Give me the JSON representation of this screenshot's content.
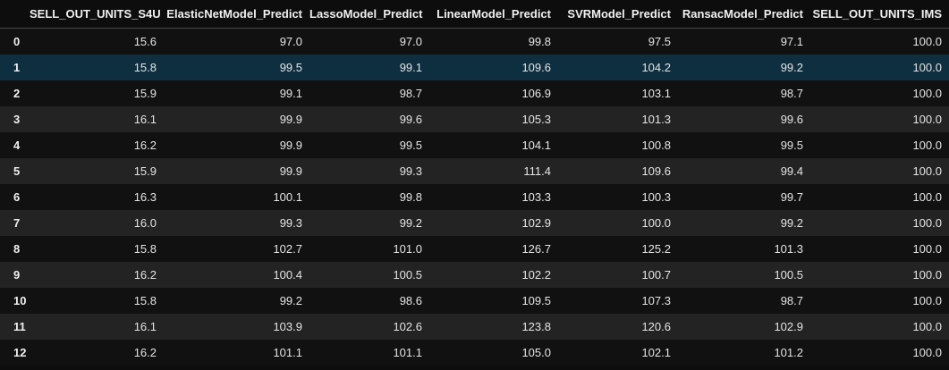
{
  "table": {
    "columns": [
      "SELL_OUT_UNITS_S4U",
      "ElasticNetModel_Predict",
      "LassoModel_Predict",
      "LinearModel_Predict",
      "SVRModel_Predict",
      "RansacModel_Predict",
      "SELL_OUT_UNITS_IMS"
    ],
    "selected_row": 1,
    "rows": [
      {
        "index": "0",
        "cells": [
          "15.6",
          "97.0",
          "97.0",
          "99.8",
          "97.5",
          "97.1",
          "100.0"
        ]
      },
      {
        "index": "1",
        "cells": [
          "15.8",
          "99.5",
          "99.1",
          "109.6",
          "104.2",
          "99.2",
          "100.0"
        ]
      },
      {
        "index": "2",
        "cells": [
          "15.9",
          "99.1",
          "98.7",
          "106.9",
          "103.1",
          "98.7",
          "100.0"
        ]
      },
      {
        "index": "3",
        "cells": [
          "16.1",
          "99.9",
          "99.6",
          "105.3",
          "101.3",
          "99.6",
          "100.0"
        ]
      },
      {
        "index": "4",
        "cells": [
          "16.2",
          "99.9",
          "99.5",
          "104.1",
          "100.8",
          "99.5",
          "100.0"
        ]
      },
      {
        "index": "5",
        "cells": [
          "15.9",
          "99.9",
          "99.3",
          "111.4",
          "109.6",
          "99.4",
          "100.0"
        ]
      },
      {
        "index": "6",
        "cells": [
          "16.3",
          "100.1",
          "99.8",
          "103.3",
          "100.3",
          "99.7",
          "100.0"
        ]
      },
      {
        "index": "7",
        "cells": [
          "16.0",
          "99.3",
          "99.2",
          "102.9",
          "100.0",
          "99.2",
          "100.0"
        ]
      },
      {
        "index": "8",
        "cells": [
          "15.8",
          "102.7",
          "101.0",
          "126.7",
          "125.2",
          "101.3",
          "100.0"
        ]
      },
      {
        "index": "9",
        "cells": [
          "16.2",
          "100.4",
          "100.5",
          "102.2",
          "100.7",
          "100.5",
          "100.0"
        ]
      },
      {
        "index": "10",
        "cells": [
          "15.8",
          "99.2",
          "98.6",
          "109.5",
          "107.3",
          "98.7",
          "100.0"
        ]
      },
      {
        "index": "11",
        "cells": [
          "16.1",
          "103.9",
          "102.6",
          "123.8",
          "120.6",
          "102.9",
          "100.0"
        ]
      },
      {
        "index": "12",
        "cells": [
          "16.2",
          "101.1",
          "101.1",
          "105.0",
          "102.1",
          "101.2",
          "100.0"
        ]
      }
    ]
  },
  "colors": {
    "background": "#0d0d0d",
    "row_even": "#111111",
    "row_odd": "#232323",
    "row_selected": "#0e2f3f",
    "text": "#e8e8e8"
  }
}
